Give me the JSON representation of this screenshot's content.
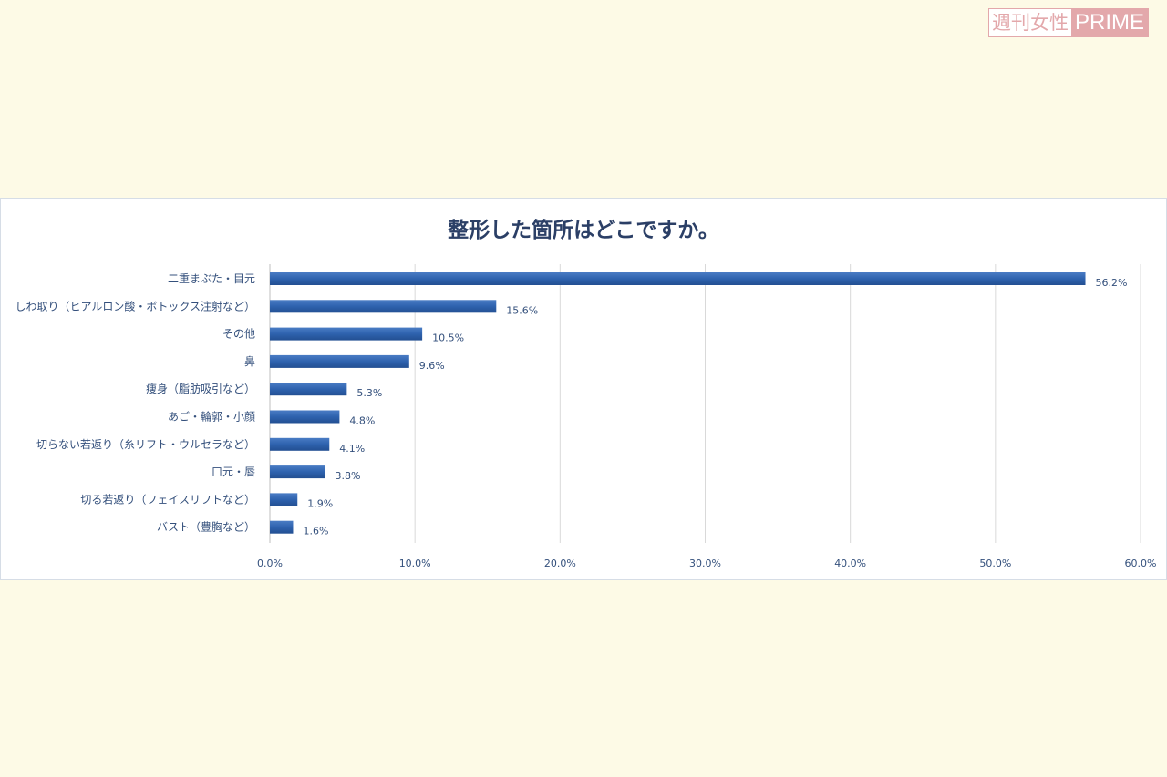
{
  "logo": {
    "text_jp": "週刊女性",
    "text_en": "PRIME"
  },
  "chart_data": {
    "type": "bar",
    "orientation": "horizontal",
    "title": "整形した箇所はどこですか。",
    "categories": [
      "二重まぶた・目元",
      "しわ取り（ヒアルロン酸・ボトックス注射など）",
      "その他",
      "鼻",
      "痩身（脂肪吸引など）",
      "あご・輪郭・小顔",
      "切らない若返り（糸リフト・ウルセラなど）",
      "口元・唇",
      "切る若返り（フェイスリフトなど）",
      "バスト（豊胸など）"
    ],
    "values": [
      56.2,
      15.6,
      10.5,
      9.6,
      5.3,
      4.8,
      4.1,
      3.8,
      1.9,
      1.6
    ],
    "value_labels": [
      "56.2%",
      "15.6%",
      "10.5%",
      "9.6%",
      "5.3%",
      "4.8%",
      "4.1%",
      "3.8%",
      "1.9%",
      "1.6%"
    ],
    "xlim": [
      0,
      60
    ],
    "xticks": [
      "0.0%",
      "10.0%",
      "20.0%",
      "30.0%",
      "40.0%",
      "50.0%",
      "60.0%"
    ],
    "grid": true,
    "bar_color": "#2e62ae"
  }
}
